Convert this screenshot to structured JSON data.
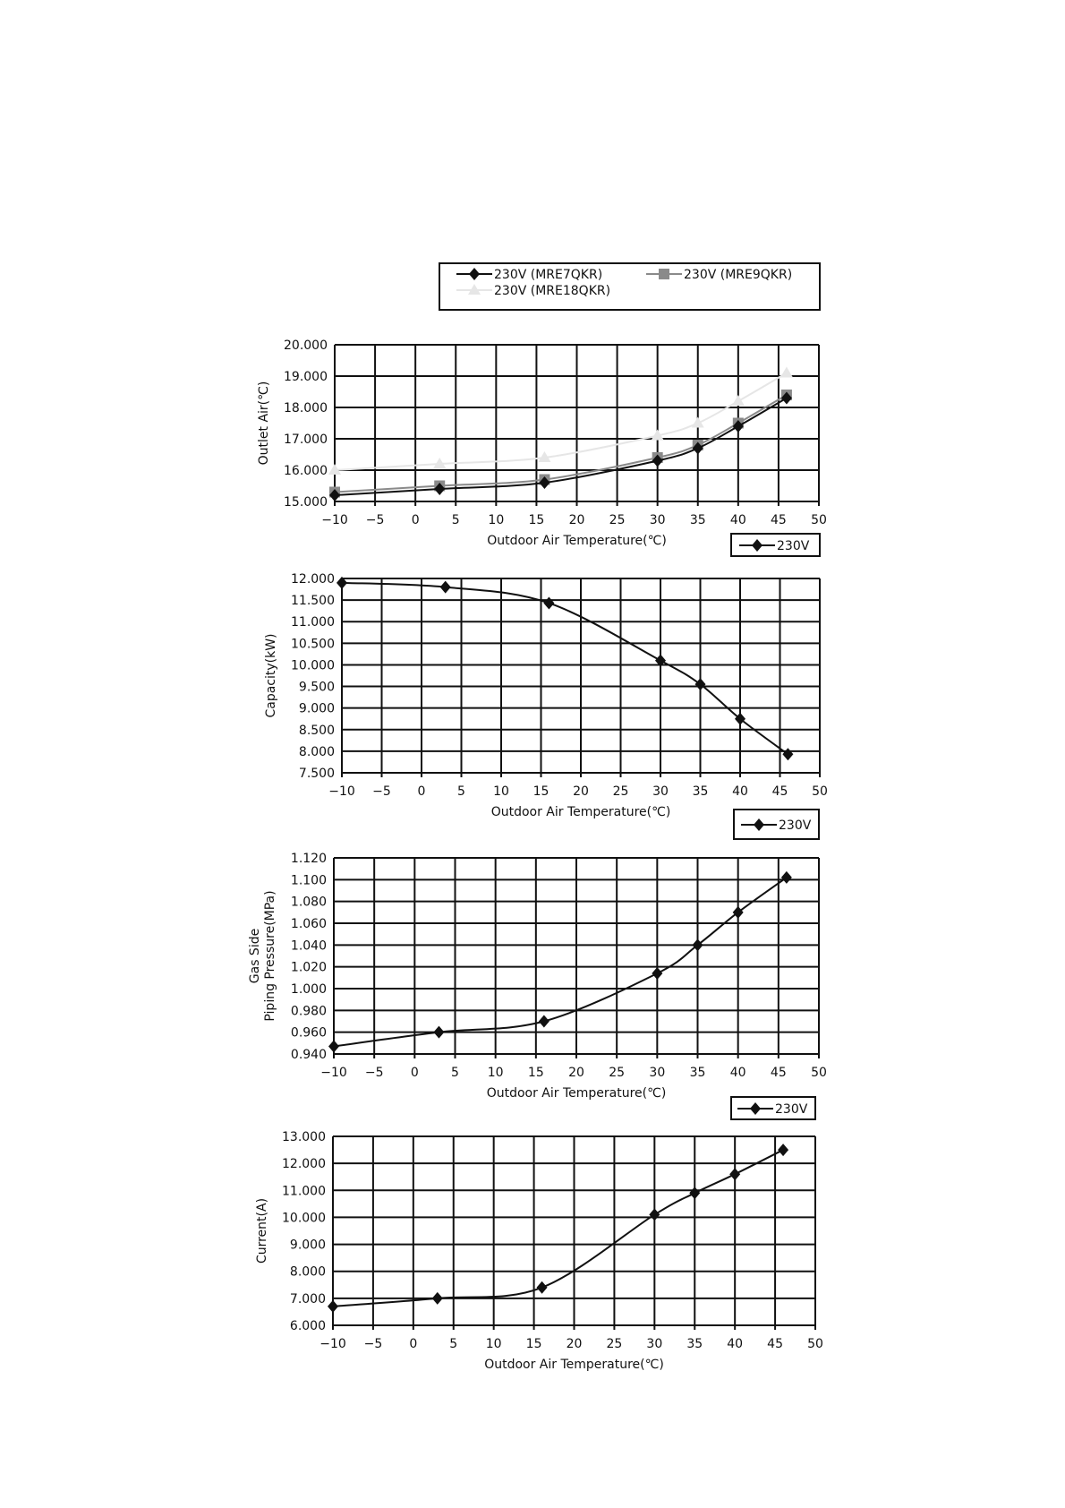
{
  "chart_data": [
    {
      "type": "line",
      "xlabel": "Outdoor Air Temperature(℃)",
      "ylabel": [
        "Outlet Air(℃)"
      ],
      "xlim": [
        -10,
        50
      ],
      "xstep": 5,
      "ylim": [
        15,
        20
      ],
      "ystep": 1,
      "grid": true,
      "legend_placement": "top",
      "x": [
        -10,
        3,
        16,
        30,
        35,
        40,
        46
      ],
      "series": [
        {
          "name": "230V (MRE7QKR)",
          "marker": "diamond",
          "color": "#111111",
          "values": [
            15.2,
            15.4,
            15.6,
            16.3,
            16.7,
            17.4,
            18.3
          ]
        },
        {
          "name": "230V (MRE9QKR)",
          "marker": "square",
          "color": "#8a8a8a",
          "values": [
            15.3,
            15.5,
            15.7,
            16.4,
            16.8,
            17.5,
            18.4
          ]
        },
        {
          "name": "230V (MRE18QKR)",
          "marker": "triangle",
          "color": "#e6e6e6",
          "values": [
            16.0,
            16.2,
            16.4,
            17.1,
            17.5,
            18.2,
            19.1
          ]
        }
      ]
    },
    {
      "type": "line",
      "xlabel": "Outdoor Air Temperature(℃)",
      "ylabel": [
        "Capacity(kW)"
      ],
      "xlim": [
        -10,
        50
      ],
      "xstep": 5,
      "ylim": [
        7.5,
        12
      ],
      "ystep": 0.5,
      "grid": true,
      "legend_placement": "top-right",
      "x": [
        -10,
        3,
        16,
        30,
        35,
        40,
        46
      ],
      "series": [
        {
          "name": "230V",
          "marker": "diamond",
          "color": "#111111",
          "values": [
            11.9,
            11.8,
            11.43,
            10.1,
            9.55,
            8.75,
            7.93
          ]
        }
      ]
    },
    {
      "type": "line",
      "xlabel": "Outdoor Air Temperature(℃)",
      "ylabel": [
        "Gas Side",
        "Piping Pressure(MPa)"
      ],
      "xlim": [
        -10,
        50
      ],
      "xstep": 5,
      "ylim": [
        0.94,
        1.12
      ],
      "ystep": 0.02,
      "grid": true,
      "legend_placement": "top-right",
      "x": [
        -10,
        3,
        16,
        30,
        35,
        40,
        46
      ],
      "series": [
        {
          "name": "230V",
          "marker": "diamond",
          "color": "#111111",
          "values": [
            0.947,
            0.96,
            0.97,
            1.014,
            1.04,
            1.07,
            1.102
          ]
        }
      ]
    },
    {
      "type": "line",
      "xlabel": "Outdoor Air Temperature(℃)",
      "ylabel": [
        "Current(A)"
      ],
      "xlim": [
        -10,
        50
      ],
      "xstep": 5,
      "ylim": [
        6,
        13
      ],
      "ystep": 1,
      "grid": true,
      "legend_placement": "top-right",
      "x": [
        -10,
        3,
        16,
        30,
        35,
        40,
        46
      ],
      "series": [
        {
          "name": "230V",
          "marker": "diamond",
          "color": "#111111",
          "values": [
            6.7,
            7.0,
            7.4,
            10.1,
            10.9,
            11.6,
            12.5
          ]
        }
      ]
    }
  ]
}
